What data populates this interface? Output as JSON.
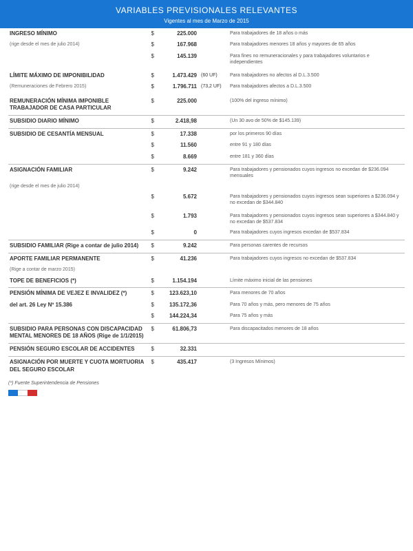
{
  "header": {
    "title": "VARIABLES PREVISIONALES RELEVANTES",
    "subtitle": "Vigentes al mes de Marzo de 2015"
  },
  "currency": "$",
  "rows": [
    {
      "type": "row",
      "label": "INGRESO MÍNIMO",
      "bold": true,
      "val": "225.000",
      "desc": "Para trabajadores de 18 años o más"
    },
    {
      "type": "row",
      "label": "(rige desde el mes de julio 2014)",
      "note": true,
      "val": "167.968",
      "desc": "Para trabajadores menores 18 años y mayores de 65 años"
    },
    {
      "type": "row",
      "label": "",
      "val": "145.139",
      "desc": "Para fines no remuneracionales y para trabajadores voluntarios e independientes"
    },
    {
      "type": "spacer"
    },
    {
      "type": "row",
      "label": "LÍMITE MÁXIMO DE IMPONIBILIDAD",
      "bold": true,
      "val": "1.473.429",
      "uf": "(60 UF)",
      "desc": "Para trabajadores no afectos al D.L.3.500"
    },
    {
      "type": "row",
      "label": "(Remuneraciones de Febrero 2015)",
      "note": true,
      "val": "1.796.711",
      "uf": "(73,2 UF)",
      "desc": "Para trabajadores afectos a D.L.3.500"
    },
    {
      "type": "spacer"
    },
    {
      "type": "row",
      "label": "REMUNERACIÓN MÍNIMA IMPONIBLE TRABAJADOR DE CASA PARTICULAR",
      "bold": true,
      "val": "225.000",
      "desc": "(100% del ingreso mínimo)"
    },
    {
      "type": "sep"
    },
    {
      "type": "row",
      "label": "SUBSIDIO DIARIO MÍNIMO",
      "bold": true,
      "val": "2.418,98",
      "desc": "(Un 30 avo de 50% de $145.139)"
    },
    {
      "type": "sep"
    },
    {
      "type": "row",
      "label": "SUBSIDIO DE CESANTÍA MENSUAL",
      "bold": true,
      "val": "17.338",
      "desc": "por los primeros 90 días"
    },
    {
      "type": "row",
      "label": "",
      "val": "11.560",
      "desc": "entre 91 y 180 días"
    },
    {
      "type": "row",
      "label": "",
      "val": "8.669",
      "desc": "entre 181 y 360 días"
    },
    {
      "type": "sep"
    },
    {
      "type": "row",
      "label": "ASIGNACIÓN FAMILIAR",
      "bold": true,
      "val": "9.242",
      "desc": "Para trabajadores y pensionados cuyos ingresos no excedan de $236.094 mensuales"
    },
    {
      "type": "row",
      "label": "(rige desde el mes de julio 2014)",
      "note": true,
      "val": "",
      "nocur": true,
      "desc": ""
    },
    {
      "type": "row",
      "label": "",
      "val": "5.672",
      "desc": "Para trabajadores y pensionados cuyos ingresos sean superiores a $236.094 y no excedan de $344.840"
    },
    {
      "type": "spacer"
    },
    {
      "type": "row",
      "label": "",
      "val": "1.793",
      "desc": "Para trabajadores y pensionados cuyos ingresos sean superiores a $344.840 y no excedan de $537.834"
    },
    {
      "type": "row",
      "label": "",
      "val": "0",
      "desc": "Para trabajadores cuyos ingresos excedan de $537.834"
    },
    {
      "type": "sep"
    },
    {
      "type": "row",
      "label": "SUBSIDIO FAMILIAR (Rige a contar de julio 2014)",
      "bold": true,
      "val": "9.242",
      "desc": "Para personas carentes de recursos"
    },
    {
      "type": "sep"
    },
    {
      "type": "row",
      "label": "APORTE FAMILIAR PERMANENTE",
      "bold": true,
      "val": "41.236",
      "desc": "Para trabajadores cuyos ingresos no excedan de $537.834"
    },
    {
      "type": "row",
      "label": "(Rige a contar de marzo 2015)",
      "note": true,
      "val": "",
      "nocur": true,
      "desc": ""
    },
    {
      "type": "row",
      "label": "TOPE DE BENEFICIOS (*)",
      "bold": true,
      "val": "1.154.194",
      "desc": "Límite máximo inicial de las pensiones"
    },
    {
      "type": "sep"
    },
    {
      "type": "row",
      "label": "PENSIÓN MÍNIMA DE VEJEZ E INVALIDEZ (*)",
      "bold": true,
      "val": "123.623,10",
      "desc": "Para menores de 70 años"
    },
    {
      "type": "row",
      "label": "del art. 26 Ley Nº 15.386",
      "bold": true,
      "val": "135.172,36",
      "desc": "Para 70 años y más, pero menores de 75 años"
    },
    {
      "type": "row",
      "label": "",
      "val": "144.224,34",
      "desc": "Para 75 años y más"
    },
    {
      "type": "sep"
    },
    {
      "type": "row",
      "label": "SUBSIDIO PARA PERSONAS CON DISCAPACIDAD MENTAL MENORES DE 18 AÑOS (Rige de 1/1/2015)",
      "bold": true,
      "val": "61.806,73",
      "desc": "Para discapacitados menores de 18 años"
    },
    {
      "type": "sep"
    },
    {
      "type": "row",
      "label": "PENSIÓN SEGURO ESCOLAR DE ACCIDENTES",
      "bold": true,
      "val": "32.331",
      "desc": ""
    },
    {
      "type": "sep"
    },
    {
      "type": "row",
      "label": "ASIGNACIÓN POR MUERTE Y CUOTA MORTUORIA DEL SEGURO ESCOLAR",
      "bold": true,
      "val": "435.417",
      "desc": "(3 Ingresos Mínimos)"
    }
  ],
  "footer": "(*) Fuente Superintendencia de Pensiones",
  "flag": {
    "c1": "#1976d2",
    "c2": "#ffffff",
    "c3": "#d32f2f"
  }
}
